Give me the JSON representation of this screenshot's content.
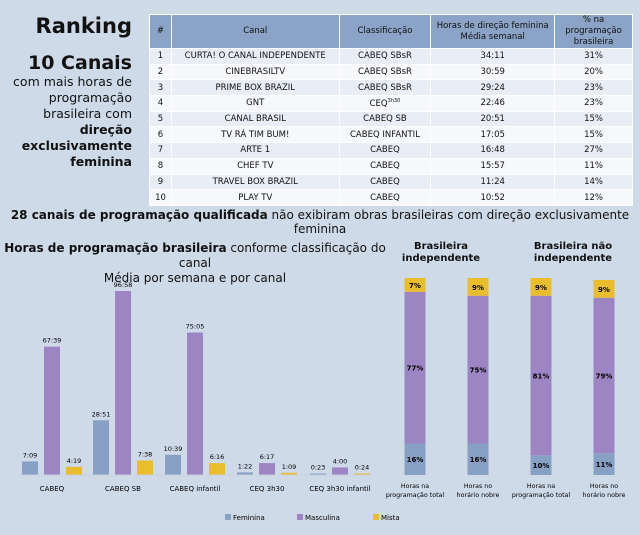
{
  "left": {
    "ranking": "Ranking",
    "count": "10 Canais",
    "line1": "com mais horas de programação brasileira com",
    "line2": "direção exclusivamente feminina"
  },
  "table": {
    "headers": [
      "#",
      "Canal",
      "Classificação",
      "Horas de direção feminina Média semanal",
      "% na programação brasileira"
    ],
    "rows": [
      [
        "1",
        "CURTA! O CANAL INDEPENDENTE",
        "CABEQ SBsR",
        "34:11",
        "31%"
      ],
      [
        "2",
        "CINEBRASILTV",
        "CABEQ SBsR",
        "30:59",
        "20%"
      ],
      [
        "3",
        "PRIME BOX BRAZIL",
        "CABEQ SBsR",
        "29:24",
        "23%"
      ],
      [
        "4",
        "GNT",
        "CEQ 3h30",
        "22:46",
        "23%"
      ],
      [
        "5",
        "CANAL BRASIL",
        "CABEQ SB",
        "20:51",
        "15%"
      ],
      [
        "6",
        "TV RÁ TIM BUM!",
        "CABEQ INFANTIL",
        "17:05",
        "15%"
      ],
      [
        "7",
        "ARTE 1",
        "CABEQ",
        "16:48",
        "27%"
      ],
      [
        "8",
        "CHEF TV",
        "CABEQ",
        "15:57",
        "11%"
      ],
      [
        "9",
        "TRAVEL BOX BRAZIL",
        "CABEQ",
        "11:24",
        "14%"
      ],
      [
        "10",
        "PLAY TV",
        "CABEQ",
        "10:52",
        "12%"
      ]
    ]
  },
  "note": {
    "bold": "28 canais de programação qualificada",
    "rest": " não exibiram obras brasileiras com direção exclusivamente feminina"
  },
  "colors": {
    "Feminina": "#87a1c5",
    "Masculina": "#9d85c4",
    "Mista": "#eabd2d"
  },
  "chart_data": [
    {
      "type": "bar",
      "title_bold": "Horas de programação brasileira",
      "title_rest": " conforme classificação do canal",
      "subtitle": "Média por semana e por canal",
      "categories": [
        "CABEQ",
        "CABEQ SB",
        "CABEQ infantil",
        "CEQ 3h30",
        "CEQ 3h30 infantil"
      ],
      "series": [
        {
          "name": "Feminina",
          "values": [
            "7:09",
            "28:51",
            "10:39",
            "1:22",
            "0:23"
          ]
        },
        {
          "name": "Masculina",
          "values": [
            "67:39",
            "96:58",
            "75:05",
            "6:17",
            "4:00"
          ]
        },
        {
          "name": "Mista",
          "values": [
            "4:19",
            "7:38",
            "6:16",
            "1:09",
            "0:24"
          ]
        }
      ],
      "legend": "bottom"
    },
    {
      "type": "bar",
      "stacked": true,
      "groups": [
        "Brasileira independente",
        "Brasileira não independente"
      ],
      "categories": [
        "Horas na programação total",
        "Horas no horário nobre",
        "Horas na programação total",
        "Horas no horário nobre"
      ],
      "series": [
        {
          "name": "Feminina",
          "values": [
            16,
            16,
            10,
            11
          ]
        },
        {
          "name": "Masculina",
          "values": [
            77,
            75,
            81,
            79
          ]
        },
        {
          "name": "Mista",
          "values": [
            7,
            9,
            9,
            9
          ]
        }
      ],
      "unit": "%"
    }
  ]
}
